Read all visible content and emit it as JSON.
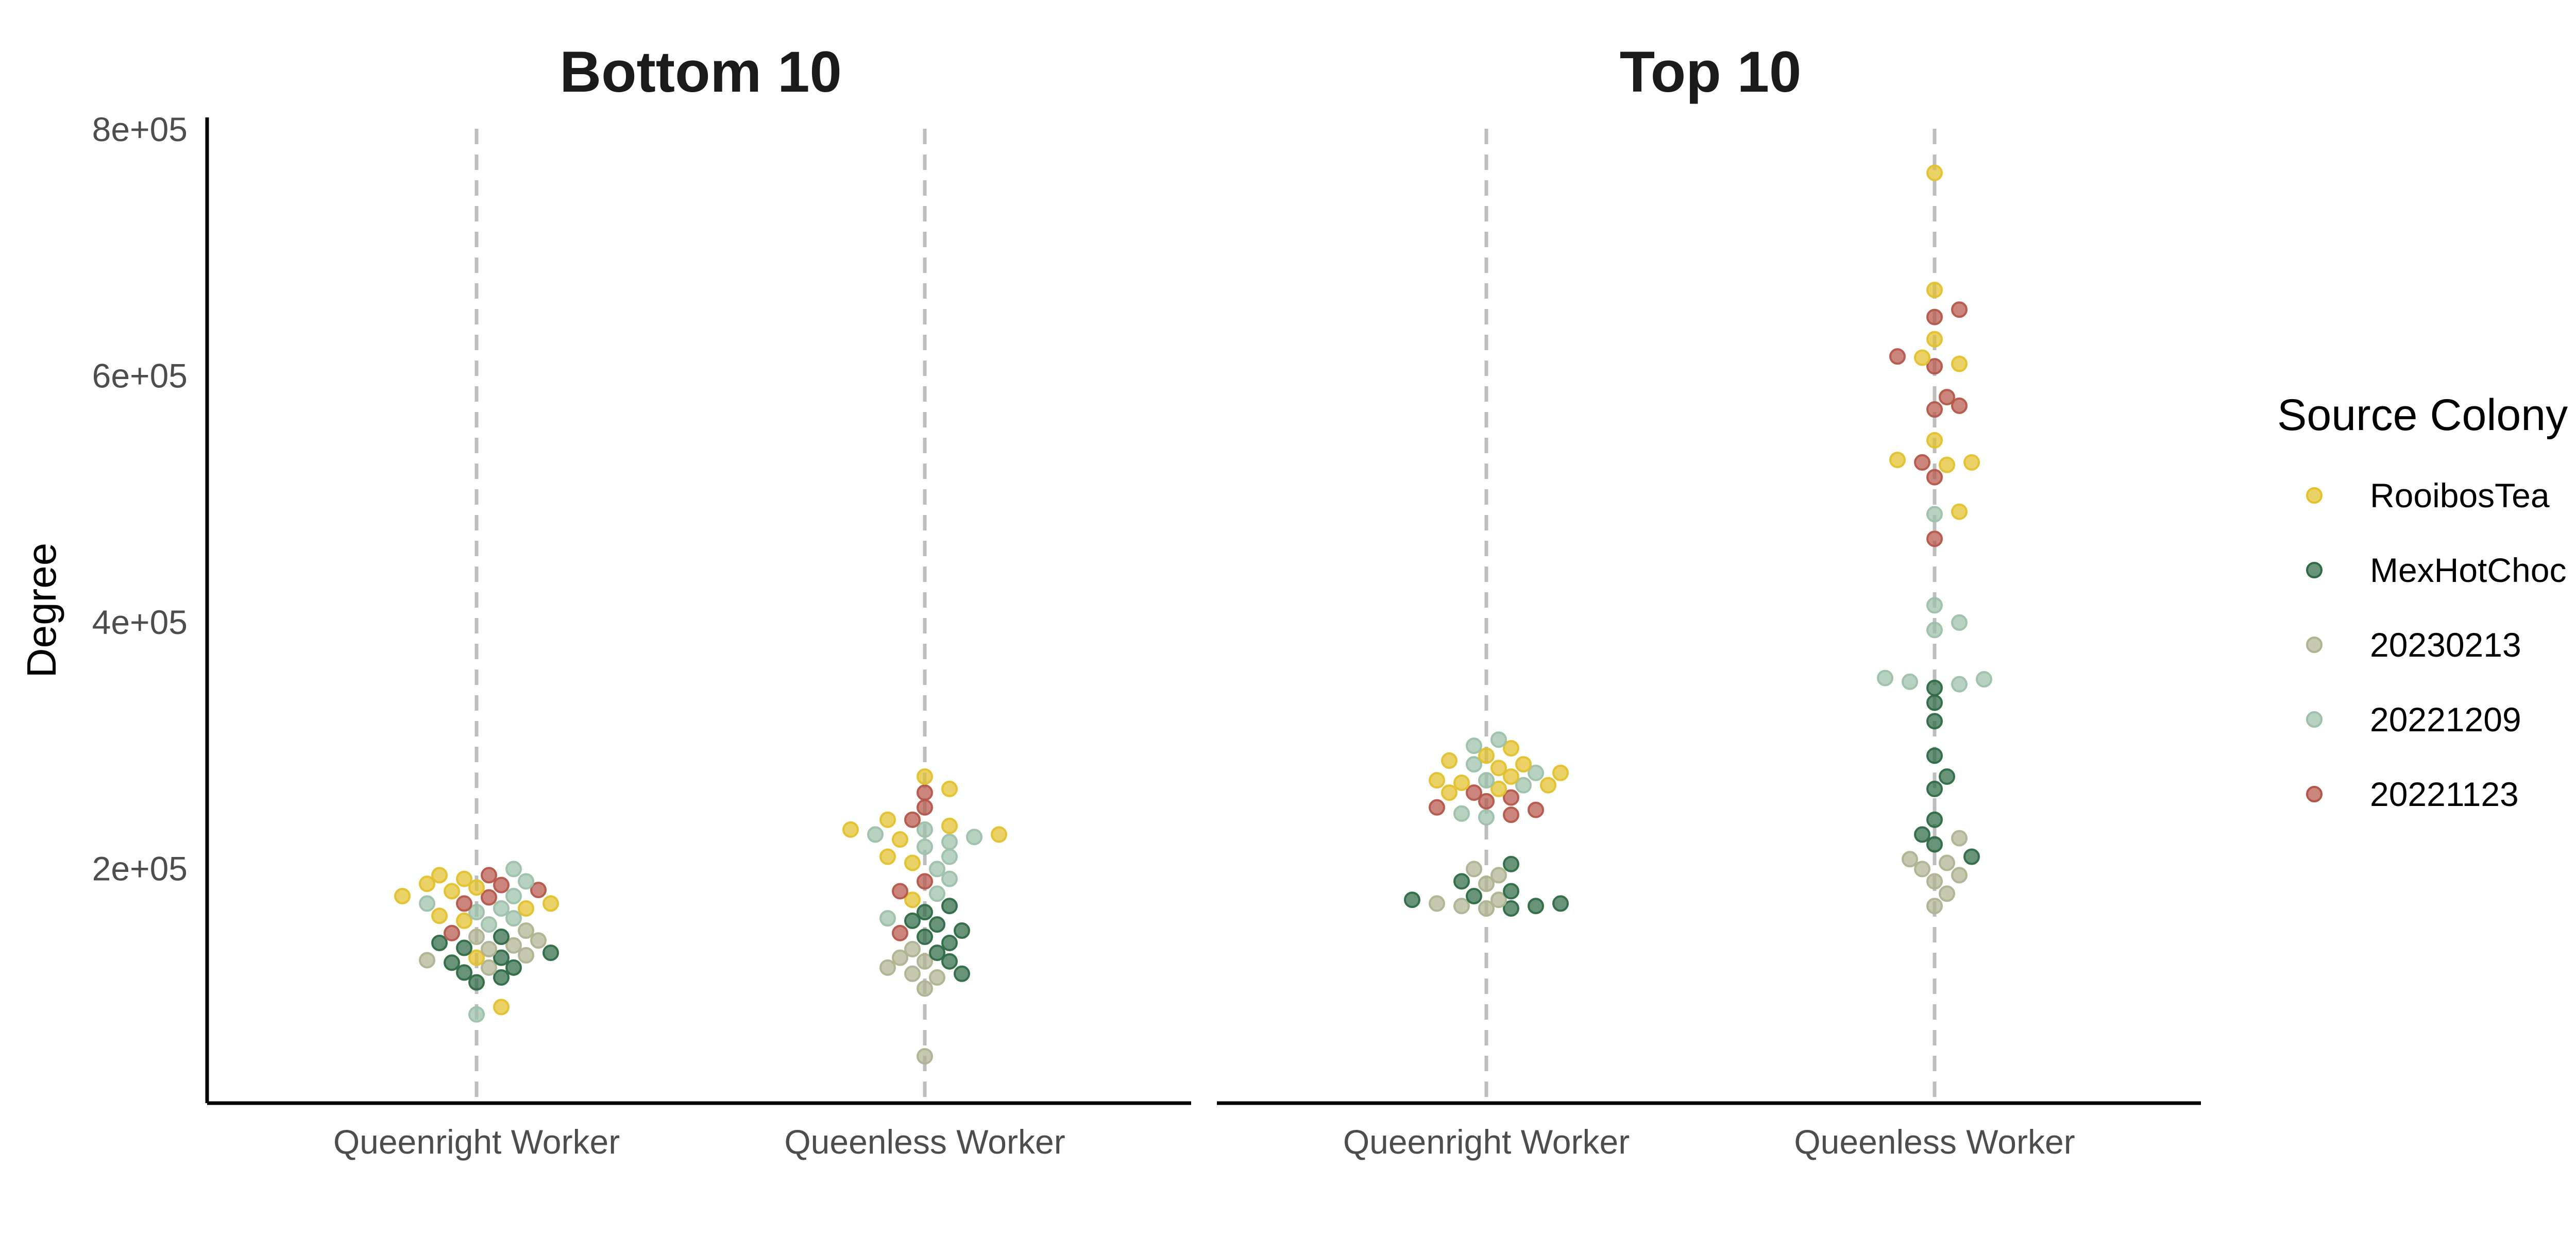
{
  "chart_data": {
    "type": "scatter",
    "ylabel": "Degree",
    "ylim": [
      10000,
      810000
    ],
    "y_ticks": [
      200000,
      400000,
      600000,
      800000
    ],
    "y_tick_labels": [
      "2e+05",
      "4e+05",
      "6e+05",
      "8e+05"
    ],
    "categories": [
      "Queenright Worker",
      "Queenless Worker"
    ],
    "legend": {
      "title": "Source Colony",
      "position": "right",
      "entries": [
        {
          "name": "RooibosTea",
          "color": "#e3c12d"
        },
        {
          "name": "MexHotChoc",
          "color": "#2e6a45"
        },
        {
          "name": "20230213",
          "color": "#b0b391"
        },
        {
          "name": "20221209",
          "color": "#9dc1aa"
        },
        {
          "name": "20221123",
          "color": "#b5564a"
        }
      ]
    },
    "grid": false,
    "panels": [
      {
        "title": "Bottom 10",
        "groups": {
          "Queenright Worker": {
            "RooibosTea": [
              195000,
              192000,
              188000,
              185000,
              182000,
              178000,
              172000,
              168000,
              162000,
              158000,
              128000,
              88000
            ],
            "MexHotChoc": [
              145000,
              140000,
              136000,
              132000,
              128000,
              124000,
              120000,
              116000,
              112000,
              108000
            ],
            "20230213": [
              150000,
              145000,
              142000,
              138000,
              135000,
              130000,
              126000,
              120000
            ],
            "20221209": [
              200000,
              190000,
              178000,
              172000,
              168000,
              165000,
              160000,
              155000,
              82000
            ],
            "20221123": [
              195000,
              187000,
              183000,
              177000,
              172000,
              148000
            ]
          },
          "Queenless Worker": {
            "RooibosTea": [
              275000,
              265000,
              240000,
              235000,
              232000,
              228000,
              224000,
              210000,
              205000,
              175000
            ],
            "MexHotChoc": [
              170000,
              165000,
              158000,
              155000,
              150000,
              145000,
              140000,
              132000,
              125000,
              115000
            ],
            "20230213": [
              135000,
              128000,
              125000,
              120000,
              115000,
              112000,
              103000,
              48000
            ],
            "20221209": [
              232000,
              228000,
              226000,
              222000,
              218000,
              210000,
              200000,
              192000,
              180000,
              160000
            ],
            "20221123": [
              262000,
              250000,
              240000,
              190000,
              182000,
              148000
            ]
          }
        }
      },
      {
        "title": "Top 10",
        "groups": {
          "Queenright Worker": {
            "RooibosTea": [
              298000,
              292000,
              288000,
              285000,
              282000,
              278000,
              275000,
              272000,
              270000,
              268000,
              265000,
              262000
            ],
            "MexHotChoc": [
              204000,
              190000,
              182000,
              178000,
              175000,
              172000,
              170000,
              168000
            ],
            "20230213": [
              200000,
              195000,
              188000,
              175000,
              172000,
              170000,
              168000
            ],
            "20221209": [
              305000,
              300000,
              285000,
              278000,
              272000,
              268000,
              245000,
              242000
            ],
            "20221123": [
              262000,
              258000,
              255000,
              250000,
              248000,
              244000
            ]
          },
          "Queenless Worker": {
            "RooibosTea": [
              765000,
              670000,
              630000,
              615000,
              610000,
              548000,
              532000,
              530000,
              528000,
              490000
            ],
            "MexHotChoc": [
              347000,
              335000,
              320000,
              292000,
              275000,
              265000,
              240000,
              228000,
              220000,
              210000
            ],
            "20230213": [
              225000,
              208000,
              205000,
              200000,
              195000,
              190000,
              180000,
              170000
            ],
            "20221209": [
              488000,
              414000,
              400000,
              394000,
              355000,
              354000,
              352000,
              350000
            ],
            "20221123": [
              654000,
              648000,
              616000,
              608000,
              583000,
              576000,
              573000,
              530000,
              518000,
              468000
            ]
          }
        }
      }
    ]
  }
}
